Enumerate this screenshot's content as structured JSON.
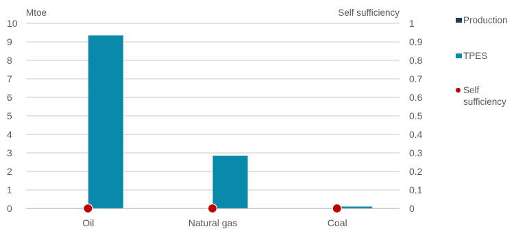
{
  "chart_data": {
    "type": "bar",
    "categories": [
      "Oil",
      "Natural gas",
      "Coal"
    ],
    "series": [
      {
        "name": "Production",
        "type": "bar",
        "axis": "left",
        "color": "#1f3a5a",
        "values": [
          0,
          0,
          0
        ]
      },
      {
        "name": "TPES",
        "type": "bar",
        "axis": "left",
        "color": "#0a8aab",
        "values": [
          9.35,
          2.85,
          0.1
        ]
      },
      {
        "name": "Self sufficiency",
        "type": "scatter",
        "axis": "right",
        "color": "#c00000",
        "values": [
          0,
          0,
          0
        ]
      }
    ],
    "y_left": {
      "label": "Mtoe",
      "min": 0,
      "max": 10,
      "ticks": [
        "0",
        "1",
        "2",
        "3",
        "4",
        "5",
        "6",
        "7",
        "8",
        "9",
        "10"
      ]
    },
    "y_right": {
      "label": "Self sufficiency",
      "min": 0,
      "max": 1,
      "ticks": [
        "0",
        "0.1",
        "0.2",
        "0.3",
        "0.4",
        "0.5",
        "0.6",
        "0.7",
        "0.8",
        "0.9",
        "1"
      ]
    },
    "grid": true,
    "legend_position": "right"
  }
}
